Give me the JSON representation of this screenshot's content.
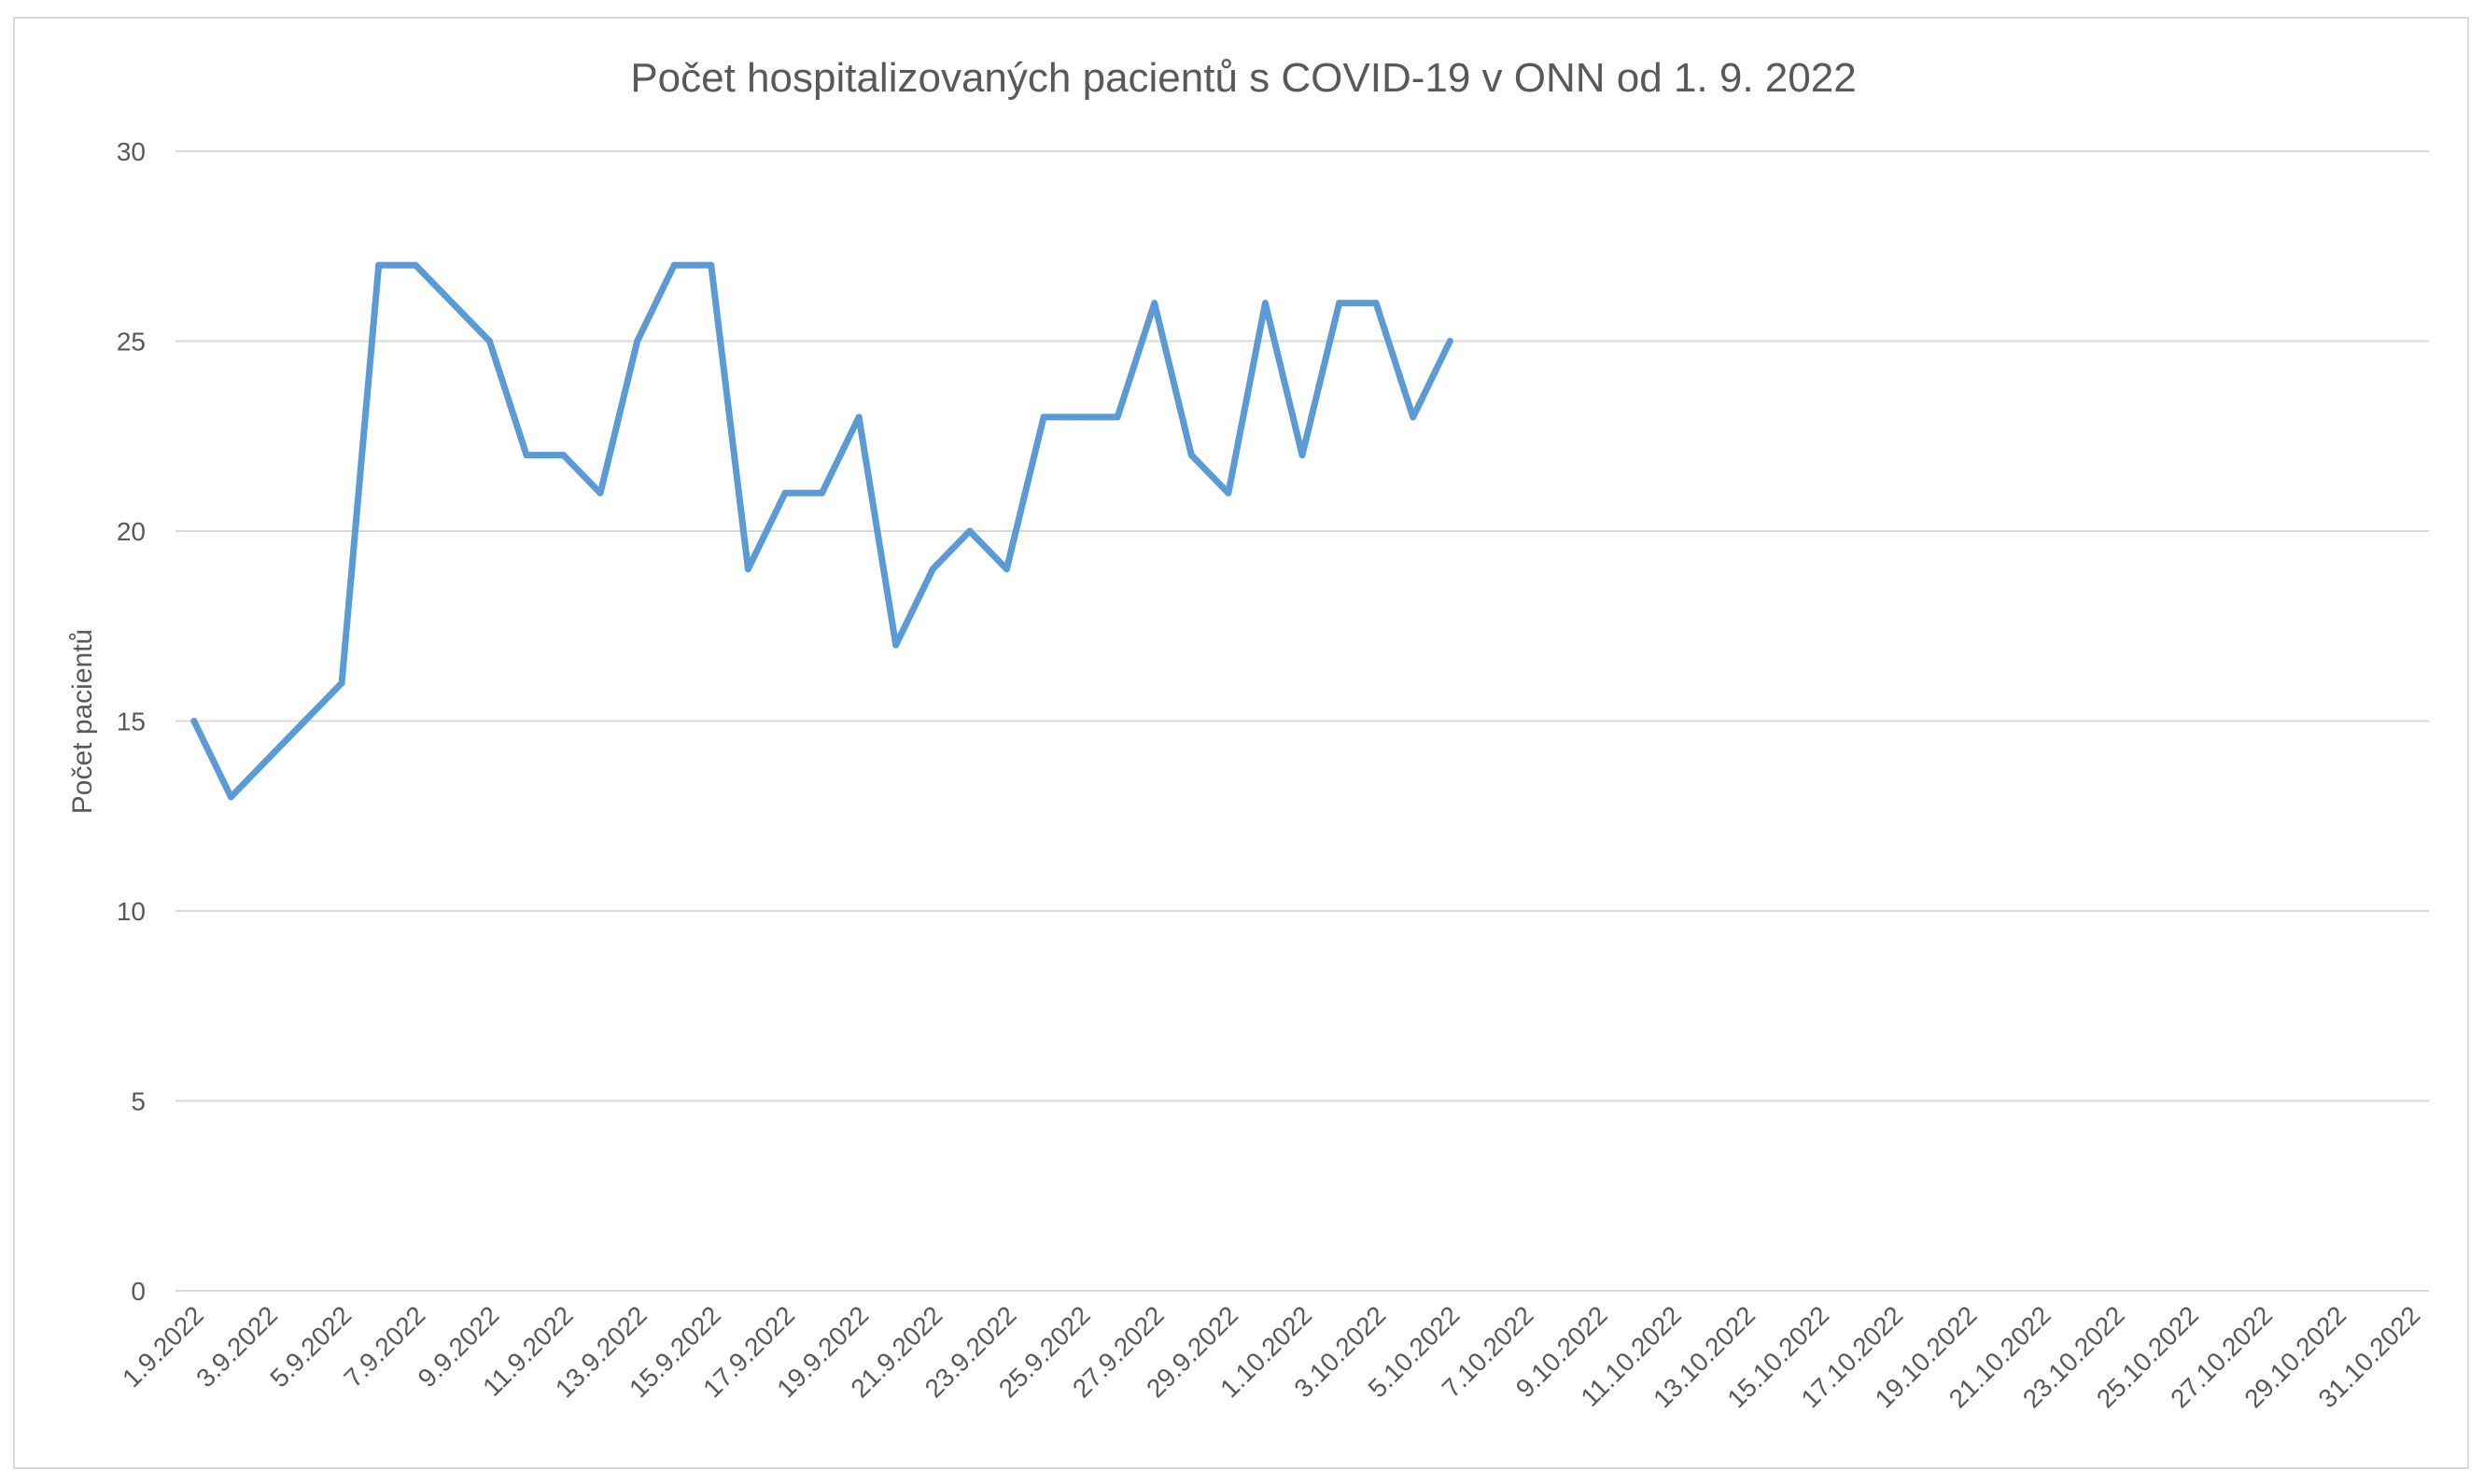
{
  "chart_data": {
    "type": "line",
    "title": "Počet hospitalizovaných pacientů s COVID-19 v ONN od 1. 9. 2022",
    "xlabel": "",
    "ylabel": "Počet pacientů",
    "ylim": [
      0,
      30
    ],
    "yticks": [
      "0",
      "5",
      "10",
      "15",
      "20",
      "25",
      "30"
    ],
    "grid": true,
    "legend": "none",
    "color": "#5b9bd5",
    "x_tick_labels": [
      "1.9.2022",
      "3.9.2022",
      "5.9.2022",
      "7.9.2022",
      "9.9.2022",
      "11.9.2022",
      "13.9.2022",
      "15.9.2022",
      "17.9.2022",
      "19.9.2022",
      "21.9.2022",
      "23.9.2022",
      "25.9.2022",
      "27.9.2022",
      "29.9.2022",
      "1.10.2022",
      "3.10.2022",
      "5.10.2022",
      "7.10.2022",
      "9.10.2022",
      "11.10.2022",
      "13.10.2022",
      "15.10.2022",
      "17.10.2022",
      "19.10.2022",
      "21.10.2022",
      "23.10.2022",
      "25.10.2022",
      "27.10.2022",
      "29.10.2022",
      "31.10.2022"
    ],
    "x": [
      "1.9.2022",
      "2.9.2022",
      "3.9.2022",
      "4.9.2022",
      "5.9.2022",
      "6.9.2022",
      "7.9.2022",
      "8.9.2022",
      "9.9.2022",
      "10.9.2022",
      "11.9.2022",
      "12.9.2022",
      "13.9.2022",
      "14.9.2022",
      "15.9.2022",
      "16.9.2022",
      "17.9.2022",
      "18.9.2022",
      "19.9.2022",
      "20.9.2022",
      "21.9.2022",
      "22.9.2022",
      "23.9.2022",
      "24.9.2022",
      "25.9.2022",
      "26.9.2022",
      "27.9.2022",
      "28.9.2022",
      "29.9.2022",
      "30.9.2022",
      "1.10.2022",
      "2.10.2022",
      "3.10.2022",
      "4.10.2022",
      "5.10.2022"
    ],
    "series": [
      {
        "values": [
          15,
          13,
          14,
          15,
          16,
          27,
          27,
          26,
          25,
          22,
          22,
          21,
          25,
          27,
          27,
          19,
          21,
          21,
          23,
          17,
          19,
          20,
          19,
          23,
          23,
          23,
          26,
          22,
          21,
          26,
          22,
          26,
          26,
          23,
          25
        ]
      }
    ]
  }
}
